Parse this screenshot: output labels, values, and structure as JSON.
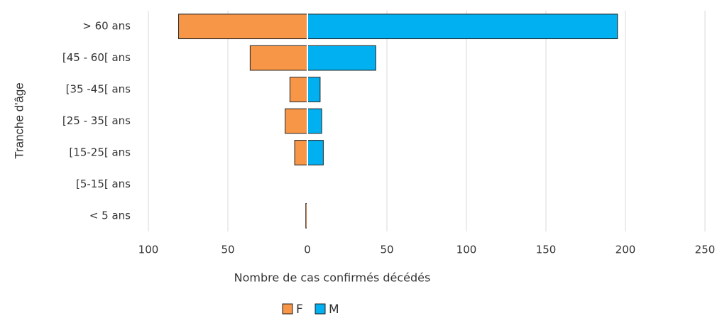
{
  "chart_data": {
    "type": "bar",
    "orientation": "horizontal",
    "stacked": false,
    "xlabel": "Nombre de cas confirmés décédés",
    "ylabel": "Tranche d'âge",
    "categories": [
      "> 60 ans",
      "[45 - 60[ ans",
      "[35 -45[ ans",
      "[25 - 35[ ans",
      "[15-25[ ans",
      "[5-15[ ans",
      "< 5 ans"
    ],
    "series": [
      {
        "name": "F",
        "color": "#f79646",
        "values": [
          -81,
          -36,
          -11,
          -14,
          -8,
          0,
          -1
        ]
      },
      {
        "name": "M",
        "color": "#00b0f0",
        "values": [
          195,
          43,
          8,
          9,
          10,
          0,
          0
        ]
      }
    ],
    "xlim": [
      -100,
      250
    ],
    "xticks": [
      {
        "value": -100,
        "label": "100"
      },
      {
        "value": -50,
        "label": "50"
      },
      0,
      50,
      100,
      150,
      200,
      250
    ],
    "grid": true,
    "legend": "bottom"
  }
}
